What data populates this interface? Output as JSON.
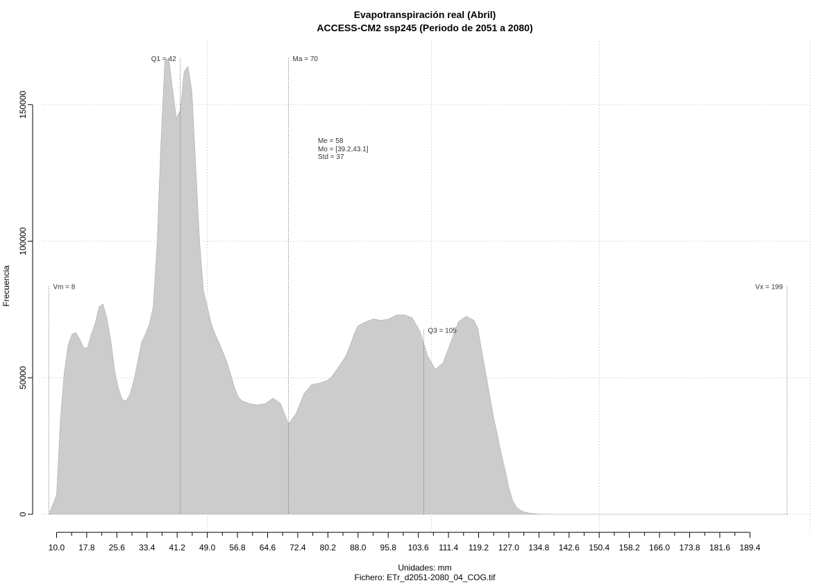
{
  "chart_data": {
    "type": "area",
    "title": "Evapotranspiración real (Abril)",
    "subtitle": "ACCESS-CM2 ssp245 (Periodo de 2051 a 2080)",
    "xlabel": "Unidades: mm",
    "caption": "Fichero: ETr_d2051-2080_04_COG.tif",
    "ylabel": "Frecuencia",
    "xlim": [
      6.5,
      205.5
    ],
    "ylim": [
      0,
      168000
    ],
    "x_ticks": [
      "10.0",
      "17.8",
      "25.6",
      "33.4",
      "41.2",
      "49.0",
      "56.8",
      "64.6",
      "72.4",
      "80.2",
      "88.0",
      "95.8",
      "103.6",
      "111.4",
      "119.2",
      "127.0",
      "134.8",
      "142.6",
      "150.4",
      "158.2",
      "166.0",
      "173.8",
      "181.6",
      "189.4"
    ],
    "y_ticks": [
      "0",
      "50000",
      "100000",
      "150000"
    ],
    "grid": true,
    "fill_color": "#cccccc",
    "series": [
      {
        "x": [
          8,
          10,
          11,
          12,
          13,
          14,
          15,
          16,
          17,
          18,
          19,
          20,
          21,
          22,
          23,
          24,
          25,
          26,
          27,
          28,
          29,
          30,
          31,
          32,
          33,
          34,
          35,
          36,
          37,
          38,
          39,
          40,
          41,
          42,
          43,
          44,
          45,
          46,
          47,
          48,
          49,
          50,
          51,
          52,
          53,
          54,
          55,
          56,
          57,
          58,
          59,
          60,
          62,
          64,
          66,
          68,
          70,
          72,
          74,
          76,
          78,
          80,
          81,
          82,
          83,
          84,
          85,
          86,
          87,
          88,
          90,
          92,
          94,
          96,
          98,
          100,
          102,
          104,
          106,
          108,
          110,
          112,
          114,
          116,
          118,
          119,
          120,
          121,
          122,
          123,
          124,
          125,
          126,
          127,
          128,
          129,
          130,
          131,
          132,
          133,
          134,
          135,
          136,
          137,
          138,
          139,
          140,
          141,
          142,
          143,
          144,
          145,
          146,
          147,
          148,
          149,
          150,
          152,
          155,
          160,
          170,
          180,
          190,
          199
        ],
        "y": [
          0,
          7000,
          35000,
          52000,
          62000,
          66000,
          66500,
          64000,
          61000,
          61000,
          66000,
          70000,
          76000,
          77000,
          72000,
          64000,
          53000,
          46000,
          42000,
          41500,
          44000,
          49000,
          56000,
          63000,
          66000,
          69500,
          76000,
          99000,
          136000,
          166000,
          167000,
          156000,
          145000,
          148000,
          162000,
          164000,
          155000,
          128000,
          100000,
          82000,
          76000,
          70000,
          66000,
          63000,
          59500,
          56000,
          51500,
          46500,
          43000,
          41500,
          41000,
          40500,
          40000,
          40500,
          42500,
          40500,
          33000,
          37000,
          44000,
          47500,
          48000,
          49000,
          50000,
          52000,
          54000,
          56000,
          58500,
          62000,
          66000,
          69000,
          70500,
          71500,
          71000,
          71500,
          73000,
          73000,
          72000,
          67000,
          58000,
          53000,
          55500,
          63000,
          70500,
          72500,
          71000,
          68000,
          60000,
          52000,
          44000,
          36000,
          29500,
          22500,
          16500,
          10000,
          5000,
          2500,
          1500,
          900,
          500,
          300,
          150,
          80,
          40,
          20,
          0,
          0,
          0,
          0,
          0,
          0,
          0,
          0,
          0,
          0,
          0,
          0,
          0,
          0,
          0,
          0,
          0,
          0,
          0,
          0
        ]
      }
    ],
    "vlines": [
      {
        "x": 8,
        "label": "Vm = 8",
        "top": 83500,
        "label_pos": "right"
      },
      {
        "x": 42,
        "label": "Q1 = 42",
        "top": 167000,
        "label_pos": "left"
      },
      {
        "x": 70,
        "label": "Ma = 70",
        "top": 167000,
        "label_pos": "right"
      },
      {
        "x": 105,
        "label": "Q3 = 105",
        "top": 67500,
        "label_pos": "right"
      },
      {
        "x": 199,
        "label": "Vx = 199",
        "top": 83500,
        "label_pos": "left"
      }
    ],
    "stats": [
      "Me = 58",
      "Mo = [39.2,43.1]",
      "Std = 37"
    ]
  }
}
